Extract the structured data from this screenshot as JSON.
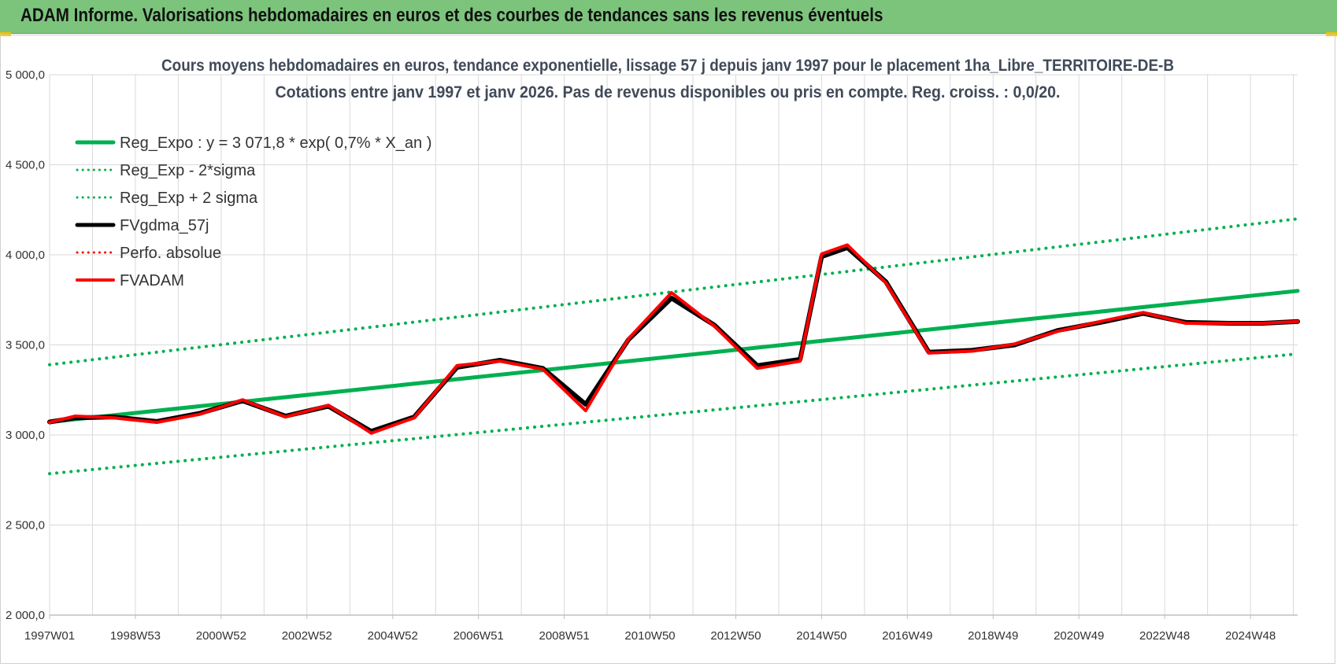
{
  "banner": {
    "title": "ADAM Informe. Valorisations hebdomadaires en euros et des courbes de tendances sans les revenus éventuels"
  },
  "colors": {
    "banner_bg": "#7cc47c",
    "trend_green": "#00b050",
    "fv_black": "#000000",
    "adam_red": "#ff0000",
    "grid": "#d9d9d9"
  },
  "chart_data": {
    "type": "line",
    "title_line1": "Cours moyens hebdomadaires en euros, tendance exponentielle, lissage 57 j depuis janv 1997 pour le placement 1ha_Libre_TERRITOIRE-DE-B",
    "title_line2": "Cotations entre janv 1997 et janv 2026. Pas de revenus disponibles ou pris en compte. Reg. croiss. : 0,0/20.",
    "xlabel": "",
    "ylabel": "",
    "xlim": [
      1997.0,
      2026.1
    ],
    "ylim": [
      2000,
      5000
    ],
    "y_ticks": [
      {
        "value": 2000,
        "label": "2 000,0"
      },
      {
        "value": 2500,
        "label": "2 500,0"
      },
      {
        "value": 3000,
        "label": "3 000,0"
      },
      {
        "value": 3500,
        "label": "3 500,0"
      },
      {
        "value": 4000,
        "label": "4 000,0"
      },
      {
        "value": 4500,
        "label": "4 500,0"
      },
      {
        "value": 5000,
        "label": "5 000,0"
      }
    ],
    "x_ticks": [
      {
        "value": 1997.0,
        "label": "1997W01"
      },
      {
        "value": 1999.0,
        "label": "1998W53"
      },
      {
        "value": 2001.0,
        "label": "2000W52"
      },
      {
        "value": 2003.0,
        "label": "2002W52"
      },
      {
        "value": 2005.0,
        "label": "2004W52"
      },
      {
        "value": 2007.0,
        "label": "2006W51"
      },
      {
        "value": 2009.0,
        "label": "2008W51"
      },
      {
        "value": 2011.0,
        "label": "2010W50"
      },
      {
        "value": 2013.0,
        "label": "2012W50"
      },
      {
        "value": 2015.0,
        "label": "2014W50"
      },
      {
        "value": 2017.0,
        "label": "2016W49"
      },
      {
        "value": 2019.0,
        "label": "2018W49"
      },
      {
        "value": 2021.0,
        "label": "2020W49"
      },
      {
        "value": 2023.0,
        "label": "2022W48"
      },
      {
        "value": 2025.0,
        "label": "2024W48"
      }
    ],
    "grid": true,
    "legend_position": "top-left",
    "series": [
      {
        "name": "Reg_Expo : y = 3 071,8 * exp( 0,7% *  X_an )",
        "style": "solid",
        "color": "#00b050",
        "width": 5,
        "x": [
          1997.0,
          2026.1
        ],
        "y": [
          3072,
          3800
        ]
      },
      {
        "name": "Reg_Exp - 2*sigma",
        "style": "dotted",
        "color": "#00b050",
        "width": 4,
        "x": [
          1997.0,
          2026.1
        ],
        "y": [
          2785,
          3450
        ]
      },
      {
        "name": "Reg_Exp + 2 sigma",
        "style": "dotted",
        "color": "#00b050",
        "width": 4,
        "x": [
          1997.0,
          2026.1
        ],
        "y": [
          3390,
          4200
        ]
      },
      {
        "name": "FVgdma_57j",
        "style": "solid",
        "color": "#000000",
        "width": 6,
        "x": [
          1997.0,
          1997.6,
          1998.5,
          1999.5,
          2000.5,
          2001.5,
          2002.5,
          2003.5,
          2004.5,
          2005.5,
          2006.5,
          2007.5,
          2008.5,
          2009.5,
          2010.5,
          2011.5,
          2012.5,
          2013.5,
          2014.5,
          2015.0,
          2015.6,
          2016.5,
          2017.5,
          2018.5,
          2019.5,
          2020.5,
          2021.5,
          2022.5,
          2023.5,
          2024.5,
          2025.3,
          2026.1
        ],
        "y": [
          3072,
          3095,
          3100,
          3075,
          3120,
          3190,
          3105,
          3160,
          3020,
          3100,
          3375,
          3415,
          3370,
          3170,
          3530,
          3760,
          3610,
          3385,
          3420,
          3990,
          4040,
          3850,
          3460,
          3470,
          3500,
          3580,
          3625,
          3675,
          3625,
          3620,
          3620,
          3630
        ]
      },
      {
        "name": "Perfo. absolue",
        "style": "dotted",
        "color": "#ff0000",
        "width": 3,
        "x": [],
        "y": []
      },
      {
        "name": "FVADAM",
        "style": "solid",
        "color": "#ff0000",
        "width": 4,
        "x": [
          1997.0,
          1997.6,
          1998.5,
          1999.5,
          2000.5,
          2001.5,
          2002.5,
          2003.5,
          2004.5,
          2005.5,
          2006.5,
          2007.5,
          2008.5,
          2009.5,
          2010.5,
          2011.5,
          2012.5,
          2013.5,
          2014.5,
          2015.0,
          2015.6,
          2016.5,
          2017.5,
          2018.5,
          2019.5,
          2020.5,
          2021.5,
          2022.5,
          2023.5,
          2024.5,
          2025.3,
          2026.1
        ],
        "y": [
          3070,
          3105,
          3095,
          3070,
          3115,
          3195,
          3100,
          3165,
          3010,
          3095,
          3385,
          3410,
          3365,
          3135,
          3535,
          3790,
          3605,
          3370,
          3410,
          4005,
          4055,
          3845,
          3455,
          3465,
          3505,
          3575,
          3630,
          3680,
          3620,
          3620,
          3620,
          3630
        ]
      }
    ]
  }
}
